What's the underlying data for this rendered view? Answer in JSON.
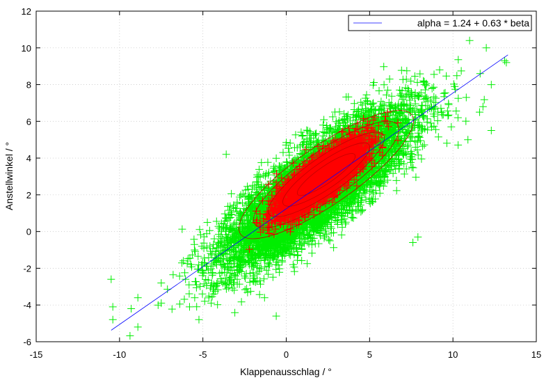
{
  "chart_data": {
    "type": "scatter",
    "xlabel": "Klappenausschlag / °",
    "ylabel": "Anstellwinkel / °",
    "xlim": [
      -15,
      15
    ],
    "ylim": [
      -6,
      12
    ],
    "xticks": [
      -15,
      -10,
      -5,
      0,
      5,
      10,
      15
    ],
    "yticks": [
      -6,
      -4,
      -2,
      0,
      2,
      4,
      6,
      8,
      10,
      12
    ],
    "grid": true,
    "legend_position": "top-right",
    "fit_line": {
      "label": "alpha = 1.24 + 0.63 * beta",
      "intercept": 1.24,
      "slope": 0.63,
      "x_range": [
        -10.5,
        13.3
      ],
      "color": "#0000ff"
    },
    "scatter": {
      "marker": "plus",
      "color": "#00ee00",
      "approx_center": [
        1.8,
        2.4
      ],
      "approx_count": 8000,
      "outliers": [
        [
          -10.5,
          -2.6
        ],
        [
          -10.4,
          -4.1
        ],
        [
          -10.4,
          -4.8
        ],
        [
          -9.3,
          -4.2
        ],
        [
          -8.9,
          -5.2
        ],
        [
          -8.9,
          -3.6
        ],
        [
          -7.5,
          -3.9
        ],
        [
          -7.5,
          -2.8
        ],
        [
          -5.8,
          -4.1
        ],
        [
          -4.5,
          -3.9
        ],
        [
          -3.6,
          4.2
        ],
        [
          -1.3,
          -3.6
        ],
        [
          -0.6,
          -4.6
        ],
        [
          -0.5,
          0.8
        ],
        [
          6.2,
          8.3
        ],
        [
          7.6,
          -0.6
        ],
        [
          7.9,
          -0.3
        ],
        [
          8.3,
          8.0
        ],
        [
          9.2,
          8.8
        ],
        [
          9.7,
          6.3
        ],
        [
          9.9,
          5.7
        ],
        [
          10.1,
          7.9
        ],
        [
          10.3,
          6.2
        ],
        [
          10.8,
          7.3
        ],
        [
          10.9,
          5.0
        ],
        [
          11.0,
          10.4
        ],
        [
          11.6,
          6.5
        ],
        [
          11.8,
          6.8
        ],
        [
          12.0,
          10.0
        ],
        [
          12.3,
          8.0
        ],
        [
          12.3,
          5.5
        ],
        [
          13.2,
          9.2
        ],
        [
          13.1,
          9.3
        ]
      ]
    },
    "density": {
      "fill_color": "#ff0000",
      "contour_color": "#c00000",
      "approx_center": [
        2.0,
        2.8
      ]
    }
  }
}
